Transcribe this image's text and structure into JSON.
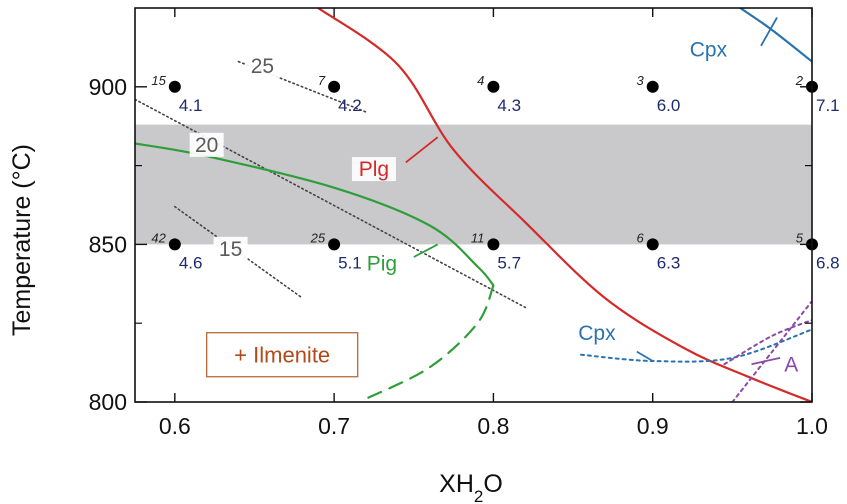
{
  "chart_data": {
    "type": "scatter",
    "title": "",
    "xlabel_parts": [
      "XH",
      "2",
      "O"
    ],
    "ylabel": "Temperature (°C)",
    "xlim": [
      0.575,
      1.0
    ],
    "ylim": [
      800,
      925
    ],
    "xticks": [
      0.6,
      0.7,
      0.8,
      0.9,
      1.0
    ],
    "xtick_labels": [
      "0.6",
      "0.7",
      "0.8",
      "0.9",
      "1.0"
    ],
    "yticks": [
      800,
      850,
      900
    ],
    "ytick_labels": [
      "800",
      "850",
      "900"
    ],
    "grid": false,
    "shaded_band": {
      "y_from": 850,
      "y_to": 888,
      "color": "#c9c9cb"
    },
    "points": [
      {
        "id": "15",
        "x": 0.6,
        "y": 900,
        "value": "4.1"
      },
      {
        "id": "7",
        "x": 0.7,
        "y": 900,
        "value": "4.2"
      },
      {
        "id": "4",
        "x": 0.8,
        "y": 900,
        "value": "4.3"
      },
      {
        "id": "3",
        "x": 0.9,
        "y": 900,
        "value": "6.0"
      },
      {
        "id": "2",
        "x": 1.0,
        "y": 900,
        "value": "7.1"
      },
      {
        "id": "42",
        "x": 0.6,
        "y": 850,
        "value": "4.6"
      },
      {
        "id": "25",
        "x": 0.7,
        "y": 850,
        "value": "5.1"
      },
      {
        "id": "11",
        "x": 0.8,
        "y": 850,
        "value": "5.7"
      },
      {
        "id": "6",
        "x": 0.9,
        "y": 850,
        "value": "6.3"
      },
      {
        "id": "5",
        "x": 1.0,
        "y": 850,
        "value": "6.8"
      }
    ],
    "isopleths": [
      {
        "label": "25",
        "points": [
          [
            0.64,
            908
          ],
          [
            0.72,
            892
          ]
        ]
      },
      {
        "label": "20",
        "points": [
          [
            0.575,
            896
          ],
          [
            0.82,
            830
          ]
        ]
      },
      {
        "label": "15",
        "points": [
          [
            0.6,
            862
          ],
          [
            0.68,
            833
          ]
        ]
      }
    ],
    "curves": [
      {
        "name": "Plg",
        "color": "#d42a2a",
        "style": "solid",
        "points": [
          [
            0.69,
            925
          ],
          [
            0.74,
            907
          ],
          [
            0.775,
            880
          ],
          [
            0.82,
            857
          ],
          [
            0.87,
            833
          ],
          [
            0.92,
            817
          ],
          [
            0.96,
            808
          ],
          [
            1.0,
            800
          ]
        ]
      },
      {
        "name": "Pig",
        "color": "#2f9e3a",
        "style": "solid",
        "points": [
          [
            0.575,
            882
          ],
          [
            0.62,
            878
          ],
          [
            0.7,
            868
          ],
          [
            0.76,
            856
          ],
          [
            0.79,
            843
          ],
          [
            0.8,
            837
          ]
        ]
      },
      {
        "name": "Pig-dashed",
        "color": "#2f9e3a",
        "style": "dashed",
        "points": [
          [
            0.8,
            837
          ],
          [
            0.79,
            825
          ],
          [
            0.76,
            811
          ],
          [
            0.72,
            801
          ]
        ]
      },
      {
        "name": "Cpx",
        "color": "#2a72b0",
        "style": "solid",
        "points": [
          [
            0.955,
            925
          ],
          [
            0.975,
            918
          ],
          [
            1.0,
            908
          ]
        ]
      },
      {
        "name": "Cpx-lower",
        "color": "#2a72b0",
        "style": "dotted",
        "points": [
          [
            0.855,
            815
          ],
          [
            0.9,
            813
          ],
          [
            0.95,
            814
          ],
          [
            1.0,
            823
          ]
        ]
      },
      {
        "name": "A",
        "color": "#8a4aa8",
        "style": "dotted",
        "points": [
          [
            0.95,
            800
          ],
          [
            0.975,
            816
          ],
          [
            1.0,
            832
          ]
        ]
      },
      {
        "name": "A-upper",
        "color": "#8a4aa8",
        "style": "dotted",
        "points": [
          [
            0.945,
            812
          ],
          [
            0.975,
            821
          ],
          [
            1.0,
            826
          ]
        ]
      }
    ],
    "curve_labels": [
      {
        "text": "Plg",
        "color": "#d42a2a",
        "x": 0.725,
        "y": 872,
        "leader": [
          [
            0.745,
            876
          ],
          [
            0.765,
            884
          ]
        ]
      },
      {
        "text": "Pig",
        "color": "#2f9e3a",
        "x": 0.73,
        "y": 842,
        "leader": [
          [
            0.75,
            846
          ],
          [
            0.765,
            850
          ]
        ]
      },
      {
        "text": "Cpx",
        "color": "#2a72b0",
        "x": 0.935,
        "y": 910,
        "leader": [
          [
            0.968,
            913
          ],
          [
            0.978,
            922
          ]
        ]
      },
      {
        "text": "Cpx",
        "color": "#2a72b0",
        "x": 0.865,
        "y": 820,
        "leader": [
          [
            0.89,
            816
          ],
          [
            0.9,
            813
          ]
        ]
      },
      {
        "text": "A",
        "color": "#8a4aa8",
        "x": 0.987,
        "y": 810,
        "leader": [
          [
            0.962,
            812
          ],
          [
            0.98,
            814
          ]
        ]
      }
    ],
    "annotation_box": {
      "text": "+ Ilmenite",
      "x": 0.62,
      "y": 815
    }
  }
}
